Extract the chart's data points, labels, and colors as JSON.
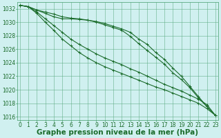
{
  "xlabel": "Graphe pression niveau de la mer (hPa)",
  "hours": [
    0,
    1,
    2,
    3,
    4,
    5,
    6,
    7,
    8,
    9,
    10,
    11,
    12,
    13,
    14,
    15,
    16,
    17,
    18,
    19,
    20,
    21,
    22,
    23
  ],
  "line1": [
    1032.5,
    1032.3,
    1031.8,
    1031.5,
    1031.2,
    1030.8,
    1030.6,
    1030.5,
    1030.3,
    1030.1,
    1029.8,
    1029.4,
    1029.0,
    1028.5,
    1027.5,
    1026.7,
    1025.5,
    1024.5,
    1023.2,
    1022.0,
    1020.5,
    1019.0,
    1017.5,
    1016.2
  ],
  "line2": [
    1032.5,
    1032.3,
    1031.8,
    1031.3,
    1030.8,
    1030.5,
    1030.5,
    1030.4,
    1030.3,
    1030.0,
    1029.6,
    1029.2,
    1028.8,
    1027.9,
    1026.8,
    1025.8,
    1024.8,
    1023.8,
    1022.5,
    1021.5,
    1020.3,
    1018.8,
    1017.5,
    1016.2
  ],
  "line3": [
    1032.5,
    1032.3,
    1031.5,
    1030.5,
    1029.5,
    1028.5,
    1027.5,
    1026.7,
    1026.0,
    1025.3,
    1024.7,
    1024.2,
    1023.7,
    1023.1,
    1022.6,
    1022.0,
    1021.4,
    1020.8,
    1020.3,
    1019.8,
    1019.2,
    1018.6,
    1017.8,
    1016.2
  ],
  "line4": [
    1032.5,
    1032.3,
    1031.3,
    1030.0,
    1028.8,
    1027.5,
    1026.5,
    1025.5,
    1024.7,
    1024.0,
    1023.4,
    1022.9,
    1022.4,
    1021.9,
    1021.4,
    1020.9,
    1020.4,
    1020.0,
    1019.5,
    1019.0,
    1018.5,
    1018.0,
    1017.2,
    1016.2
  ],
  "ylim": [
    1015.5,
    1033.0
  ],
  "yticks": [
    1016,
    1018,
    1020,
    1022,
    1024,
    1026,
    1028,
    1030,
    1032
  ],
  "bg_color": "#d0f0f0",
  "grid_color": "#5aaa80",
  "line_color": "#1a6b2a",
  "marker": "+",
  "marker_size": 3,
  "marker_edge_width": 0.7,
  "line_width": 0.8,
  "xlabel_fontsize": 7.5,
  "tick_fontsize": 5.5
}
